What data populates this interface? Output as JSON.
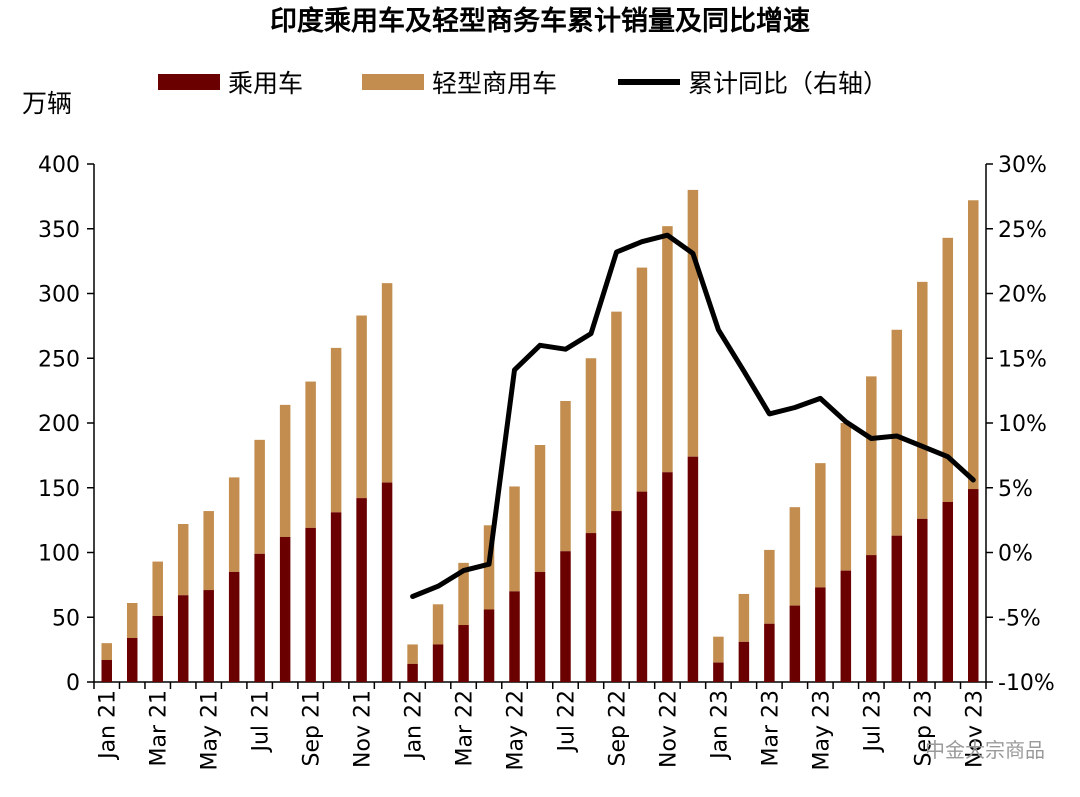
{
  "chart_data": {
    "type": "bar",
    "title": "印度乘用车及轻型商务车累计销量及同比增速",
    "y_unit": "万辆",
    "ylim": [
      0,
      400
    ],
    "y_ticks": [
      0,
      50,
      100,
      150,
      200,
      250,
      300,
      350,
      400
    ],
    "y2lim": [
      -0.1,
      0.3
    ],
    "y2_ticks": [
      "-10%",
      "-5%",
      "0%",
      "5%",
      "10%",
      "15%",
      "20%",
      "25%",
      "30%"
    ],
    "legend_position": "top",
    "categories": [
      "Jan 21",
      "Feb 21",
      "Mar 21",
      "Apr 21",
      "May 21",
      "Jun 21",
      "Jul 21",
      "Aug 21",
      "Sep 21",
      "Oct 21",
      "Nov 21",
      "Dec 21",
      "Jan 22",
      "Feb 22",
      "Mar 22",
      "Apr 22",
      "May 22",
      "Jun 22",
      "Jul 22",
      "Aug 22",
      "Sep 22",
      "Oct 22",
      "Nov 22",
      "Dec 22",
      "Jan 23",
      "Feb 23",
      "Mar 23",
      "Apr 23",
      "May 23",
      "Jun 23",
      "Jul 23",
      "Aug 23",
      "Sep 23",
      "Oct 23",
      "Nov 23"
    ],
    "x_tick_labels": [
      "Jan 21",
      "Mar 21",
      "May 21",
      "Jul 21",
      "Sep 21",
      "Nov 21",
      "Jan 22",
      "Mar 22",
      "May 22",
      "Jul 22",
      "Sep 22",
      "Nov 22",
      "Jan 23",
      "Mar 23",
      "May 23",
      "Jul 23",
      "Sep 23",
      "Nov 23"
    ],
    "series": [
      {
        "name": "乘用车",
        "type": "bar",
        "color": "#6b0000",
        "values": [
          17,
          34,
          51,
          67,
          71,
          85,
          99,
          112,
          119,
          131,
          142,
          154,
          14,
          29,
          44,
          56,
          70,
          85,
          101,
          115,
          132,
          147,
          162,
          174,
          15,
          31,
          45,
          59,
          73,
          86,
          98,
          113,
          126,
          139,
          149
        ]
      },
      {
        "name": "轻型商用车",
        "type": "bar",
        "color": "#c28d4e",
        "values": [
          13,
          27,
          42,
          55,
          61,
          73,
          88,
          102,
          113,
          127,
          141,
          154,
          15,
          31,
          48,
          65,
          81,
          98,
          116,
          135,
          154,
          173,
          190,
          206,
          20,
          37,
          57,
          76,
          96,
          114,
          138,
          159,
          183,
          204,
          223
        ]
      },
      {
        "name": "累计同比（右轴）",
        "type": "line",
        "axis": "right",
        "color": "#000000",
        "values": [
          null,
          null,
          null,
          null,
          null,
          null,
          null,
          null,
          null,
          null,
          null,
          null,
          -0.034,
          -0.026,
          -0.014,
          -0.009,
          0.141,
          0.16,
          0.157,
          0.169,
          0.232,
          0.24,
          0.245,
          0.231,
          0.172,
          0.14,
          0.107,
          0.112,
          0.119,
          0.101,
          0.088,
          0.09,
          0.082,
          0.074,
          0.056
        ]
      }
    ]
  },
  "watermark": "中金大宗商品"
}
